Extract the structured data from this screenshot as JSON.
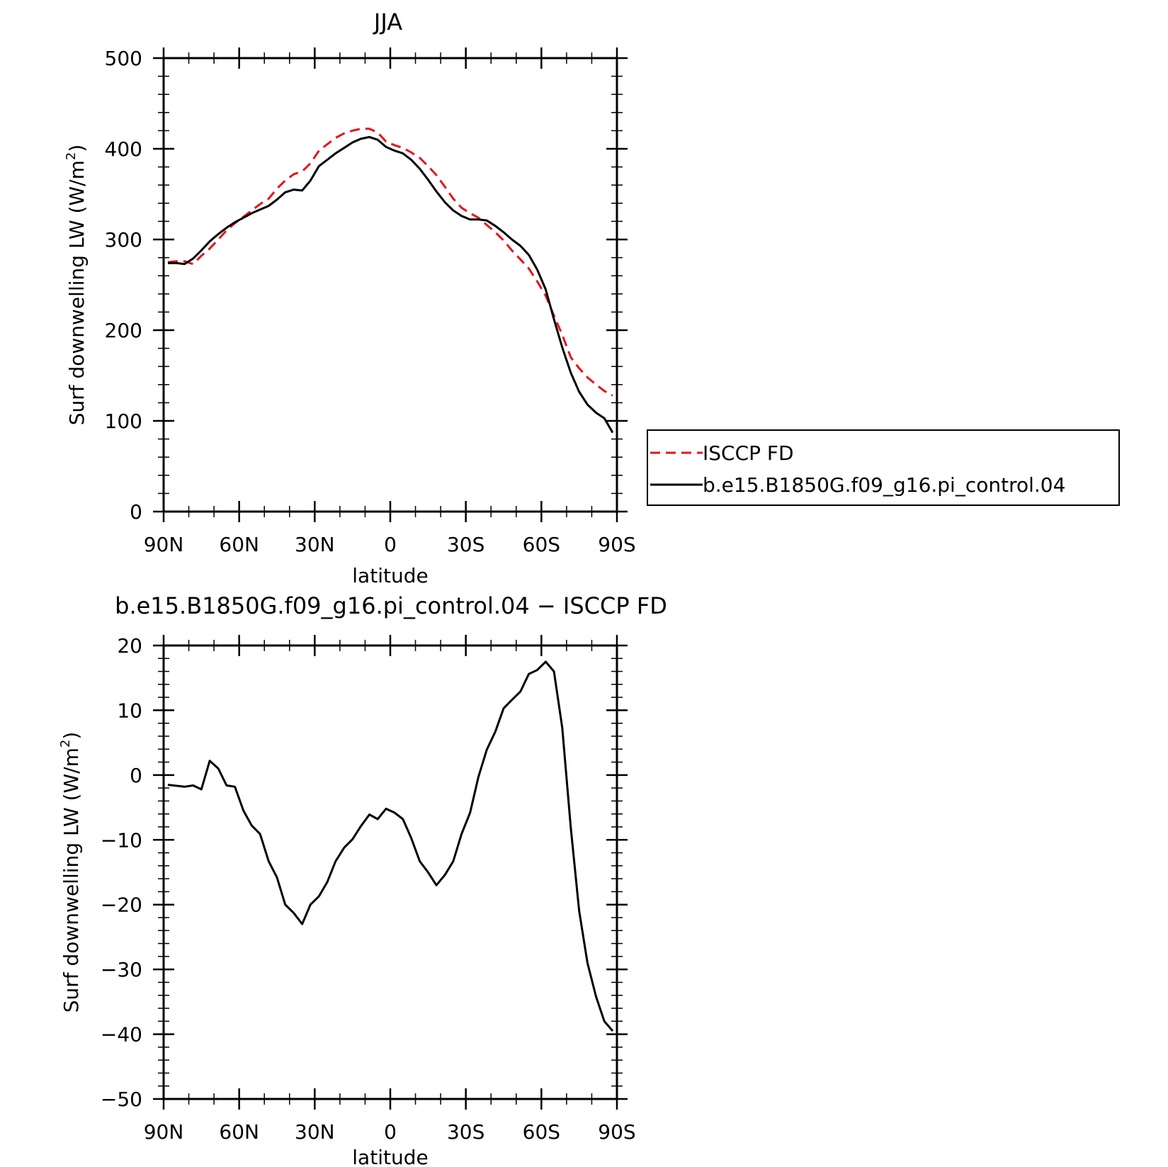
{
  "chart_data": [
    {
      "type": "line",
      "title": "JJA",
      "xlabel": "latitude",
      "ylabel_parts": [
        "Surf downwelling LW  (W/m",
        "2",
        ")"
      ],
      "xlim": [
        90,
        -90
      ],
      "ylim": [
        0,
        500
      ],
      "yticks": [
        0,
        100,
        200,
        300,
        400,
        500
      ],
      "xticks": [
        90,
        60,
        30,
        0,
        -30,
        -60,
        -90
      ],
      "xtick_labels": [
        "90N",
        "60N",
        "30N",
        "0",
        "30S",
        "60S",
        "90S"
      ],
      "legend": "right",
      "series": [
        {
          "name": "ISCCP FD",
          "color": "#e8141a",
          "dash": "dashed",
          "x": [
            88.3,
            85,
            81.7,
            78.3,
            75,
            71.7,
            68.3,
            65,
            61.7,
            58.3,
            55,
            51.7,
            48.3,
            45,
            41.7,
            38.3,
            35,
            31.7,
            28.3,
            25,
            21.7,
            18.3,
            15,
            11.7,
            8.3,
            5,
            1.7,
            -1.7,
            -5,
            -8.3,
            -11.7,
            -15,
            -18.3,
            -21.7,
            -25,
            -28.3,
            -31.7,
            -35,
            -38.3,
            -41.7,
            -45,
            -48.3,
            -51.7,
            -55,
            -58.3,
            -61.7,
            -65,
            -68.3,
            -71.7,
            -75,
            -78.3,
            -81.7,
            -85,
            -88.3
          ],
          "y": [
            275,
            276,
            276,
            273,
            282,
            290,
            300,
            310,
            318,
            325,
            332,
            339,
            345,
            356,
            365,
            372,
            375,
            384,
            398,
            405,
            412,
            417,
            420,
            422,
            422,
            418,
            408,
            404,
            401,
            396,
            390,
            381,
            371,
            358,
            345,
            335,
            329,
            324,
            316,
            308,
            299,
            288,
            278,
            268,
            254,
            238,
            216,
            195,
            170,
            158,
            148,
            140,
            133,
            128
          ]
        },
        {
          "name": "b.e15.B1850G.f09_g16.pi_control.04",
          "color": "#000000",
          "dash": "solid",
          "x": [
            88.3,
            85,
            81.7,
            78.3,
            75,
            71.7,
            68.3,
            65,
            61.7,
            58.3,
            55,
            51.7,
            48.3,
            45,
            41.7,
            38.3,
            35,
            31.7,
            28.3,
            25,
            21.7,
            18.3,
            15,
            11.7,
            8.3,
            5,
            1.7,
            -1.7,
            -5,
            -8.3,
            -11.7,
            -15,
            -18.3,
            -21.7,
            -25,
            -28.3,
            -31.7,
            -35,
            -38.3,
            -41.7,
            -45,
            -48.3,
            -51.7,
            -55,
            -58.3,
            -61.7,
            -65,
            -68.3,
            -71.7,
            -75,
            -78.3,
            -81.7,
            -85,
            -88.3
          ],
          "y": [
            274,
            274,
            273,
            279,
            288,
            298,
            306,
            313,
            319,
            324,
            329,
            333,
            337,
            344,
            352,
            355,
            354,
            365,
            381,
            388,
            395,
            401,
            407,
            411,
            413,
            410,
            402,
            398,
            395,
            388,
            378,
            366,
            353,
            341,
            332,
            326,
            322,
            322,
            321,
            315,
            308,
            300,
            293,
            283,
            267,
            245,
            212,
            181,
            153,
            132,
            118,
            109,
            103,
            87
          ]
        }
      ]
    },
    {
      "type": "line",
      "title": "b.e15.B1850G.f09_g16.pi_control.04 − ISCCP FD",
      "xlabel": "latitude",
      "ylabel_parts": [
        "Surf downwelling LW  (W/m",
        "2",
        ")"
      ],
      "xlim": [
        90,
        -90
      ],
      "ylim": [
        -50,
        20
      ],
      "yticks": [
        -50,
        -40,
        -30,
        -20,
        -10,
        0,
        10,
        20
      ],
      "xticks": [
        90,
        60,
        30,
        0,
        -30,
        -60,
        -90
      ],
      "xtick_labels": [
        "90N",
        "60N",
        "30N",
        "0",
        "30S",
        "60S",
        "90S"
      ],
      "series": [
        {
          "color": "#000000",
          "dash": "solid",
          "x": [
            88.3,
            81.7,
            78.3,
            75,
            71.7,
            68.3,
            65,
            61.7,
            58.3,
            55,
            51.7,
            48.3,
            45,
            41.7,
            38.3,
            35,
            31.7,
            28.3,
            25,
            21.7,
            18.3,
            15,
            11.7,
            8.3,
            5,
            1.7,
            -1.7,
            -5,
            -8.3,
            -11.7,
            -15,
            -18.3,
            -21.7,
            -25,
            -28.3,
            -31.7,
            -35,
            -38.3,
            -41.7,
            -45,
            -48.3,
            -51.7,
            -55,
            -58.3,
            -61.7,
            -65,
            -68.3,
            -71.7,
            -75,
            -78.3,
            -81.7,
            -85,
            -88.3
          ],
          "y": [
            -1.5,
            -1.8,
            -1.6,
            -2.2,
            2.2,
            1,
            -1.6,
            -1.8,
            -5.5,
            -7.8,
            -9.1,
            -13.3,
            -15.8,
            -20,
            -21.3,
            -23,
            -20,
            -18.7,
            -16.5,
            -13.3,
            -11.2,
            -9.9,
            -7.9,
            -6.1,
            -6.8,
            -5.2,
            -5.8,
            -6.8,
            -9.7,
            -13.3,
            -15,
            -17,
            -15.4,
            -13.3,
            -9.1,
            -5.8,
            -0.3,
            3.9,
            6.7,
            10.3,
            11.6,
            12.9,
            15.6,
            16.2,
            17.5,
            16,
            7.3,
            -8.2,
            -21,
            -29,
            -34.2,
            -38,
            -39.5
          ]
        }
      ]
    }
  ]
}
